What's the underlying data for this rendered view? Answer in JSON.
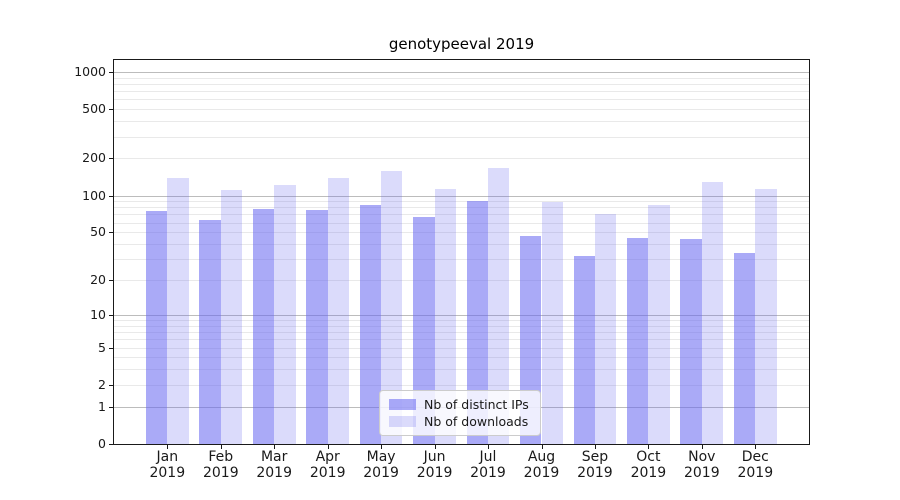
{
  "title": "genotypeeval 2019",
  "chart_data": {
    "type": "bar",
    "title": "genotypeeval 2019",
    "months": [
      "Jan",
      "Feb",
      "Mar",
      "Apr",
      "May",
      "Jun",
      "Jul",
      "Aug",
      "Sep",
      "Oct",
      "Nov",
      "Dec"
    ],
    "year": "2019",
    "categories": [
      "Jan 2019",
      "Feb 2019",
      "Mar 2019",
      "Apr 2019",
      "May 2019",
      "Jun 2019",
      "Jul 2019",
      "Aug 2019",
      "Sep 2019",
      "Oct 2019",
      "Nov 2019",
      "Dec 2019"
    ],
    "series": [
      {
        "name": "Nb of distinct IPs",
        "color": "rgba(100,100,240,0.55)",
        "values": [
          75,
          63,
          77,
          76,
          83,
          67,
          90,
          47,
          32,
          45,
          44,
          34
        ]
      },
      {
        "name": "Nb of downloads",
        "color": "rgba(100,100,240,0.235)",
        "values": [
          139,
          111,
          122,
          139,
          159,
          113,
          167,
          88,
          71,
          84,
          130,
          114
        ]
      }
    ],
    "yscale": "log1p",
    "y_ticks": [
      1000,
      500,
      200,
      100,
      50,
      20,
      10,
      5,
      2,
      1,
      0
    ],
    "ylim": [
      0,
      1300
    ],
    "grid": true,
    "legend_position": "lower center"
  },
  "colors": {
    "bar_base": "#6464f0",
    "major_grid": "#bcbcbc",
    "minor_grid": "#e9e9e9",
    "axis": "#1a1a1a",
    "legend_border": "#cccccc"
  }
}
